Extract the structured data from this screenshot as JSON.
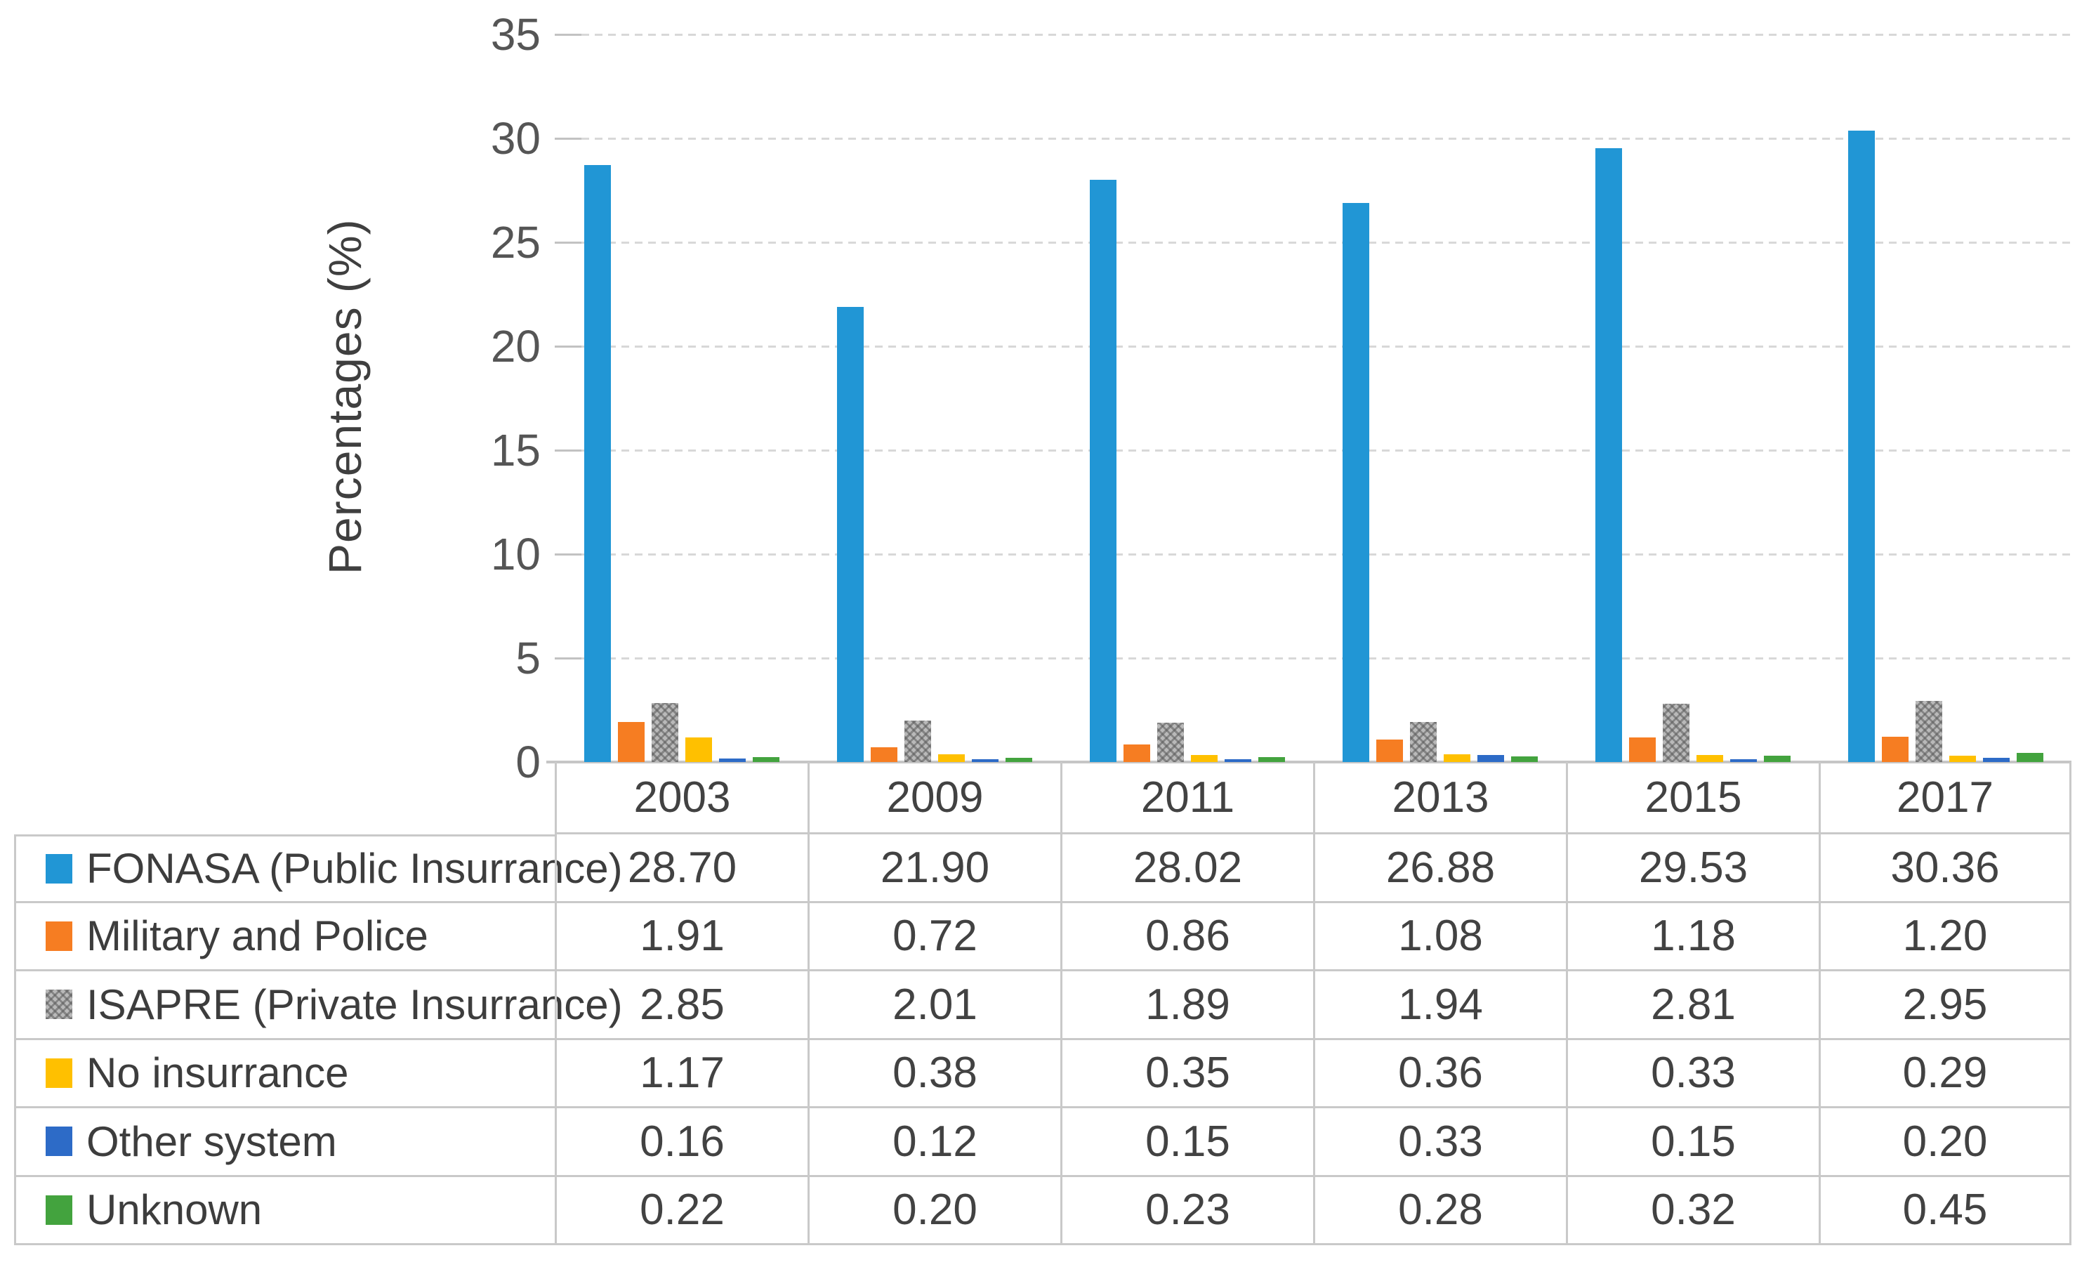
{
  "chart_data": {
    "type": "bar",
    "title": "",
    "xlabel": "",
    "ylabel": "Percentages (%)",
    "ylim": [
      0,
      35
    ],
    "yticks": [
      0,
      5,
      10,
      15,
      20,
      25,
      30,
      35
    ],
    "grid": true,
    "legend_position": "table-left-column",
    "categories": [
      "2003",
      "2009",
      "2011",
      "2013",
      "2015",
      "2017"
    ],
    "series": [
      {
        "name": "FONASA (Public Insurrance)",
        "color": "#2196d5",
        "pattern": "solid",
        "values": [
          28.7,
          21.9,
          28.02,
          26.88,
          29.53,
          30.36
        ]
      },
      {
        "name": "Military and Police",
        "color": "#f67d22",
        "pattern": "solid",
        "values": [
          1.91,
          0.72,
          0.86,
          1.08,
          1.18,
          1.2
        ]
      },
      {
        "name": "ISAPRE (Private Insurrance)",
        "color": "#a5a5a5",
        "pattern": "crosshatch",
        "values": [
          2.85,
          2.01,
          1.89,
          1.94,
          2.81,
          2.95
        ]
      },
      {
        "name": "No insurrance",
        "color": "#ffc000",
        "pattern": "solid",
        "values": [
          1.17,
          0.38,
          0.35,
          0.36,
          0.33,
          0.29
        ]
      },
      {
        "name": "Other system",
        "color": "#2d6bc7",
        "pattern": "solid",
        "values": [
          0.16,
          0.12,
          0.15,
          0.33,
          0.15,
          0.2
        ]
      },
      {
        "name": "Unknown",
        "color": "#43a33e",
        "pattern": "solid",
        "values": [
          0.22,
          0.2,
          0.23,
          0.28,
          0.32,
          0.45
        ]
      }
    ],
    "value_format_decimals": 2
  }
}
